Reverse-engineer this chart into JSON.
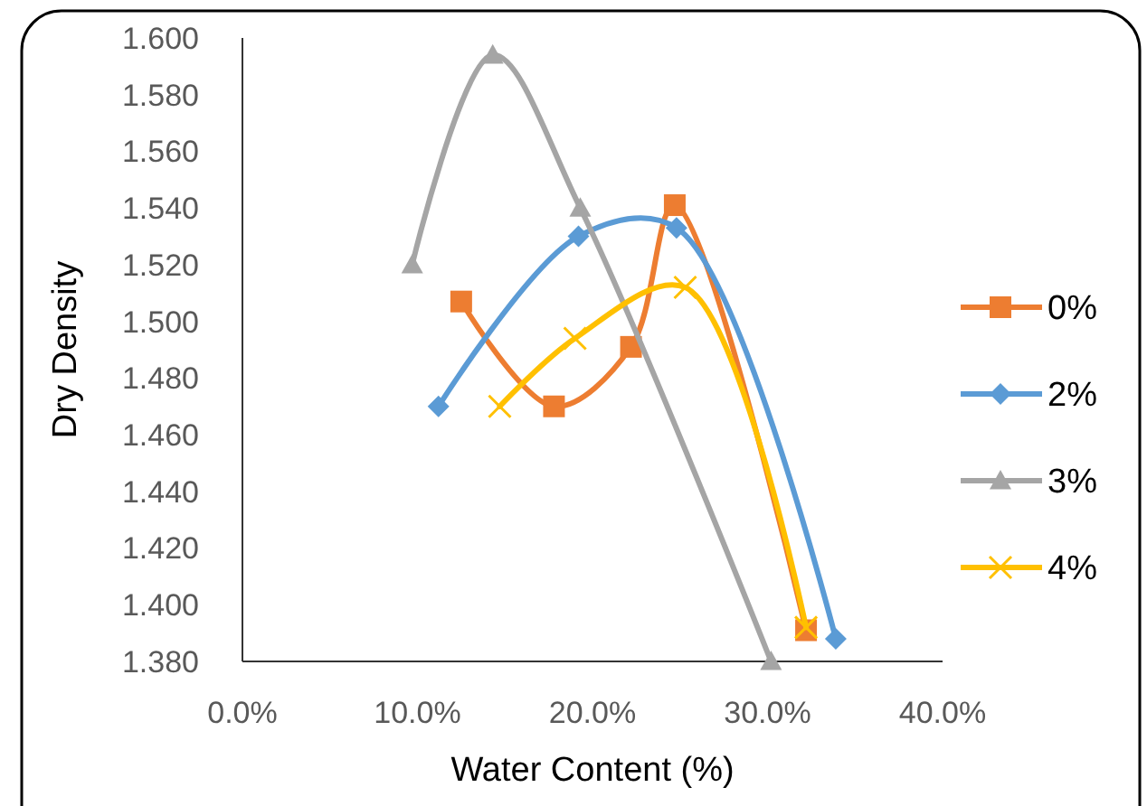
{
  "chart_data": {
    "type": "line",
    "xlabel": "Water Content (%)",
    "ylabel": "Dry Density",
    "xlim": [
      0,
      40
    ],
    "ylim": [
      1.38,
      1.6
    ],
    "xticks": [
      {
        "value": 0,
        "label": "0.0%"
      },
      {
        "value": 10,
        "label": "10.0%"
      },
      {
        "value": 20,
        "label": "20.0%"
      },
      {
        "value": 30,
        "label": "30.0%"
      },
      {
        "value": 40,
        "label": "40.0%"
      }
    ],
    "yticks": [
      {
        "value": 1.38,
        "label": "1.380"
      },
      {
        "value": 1.4,
        "label": "1.400"
      },
      {
        "value": 1.42,
        "label": "1.420"
      },
      {
        "value": 1.44,
        "label": "1.440"
      },
      {
        "value": 1.46,
        "label": "1.460"
      },
      {
        "value": 1.48,
        "label": "1.480"
      },
      {
        "value": 1.5,
        "label": "1.500"
      },
      {
        "value": 1.52,
        "label": "1.520"
      },
      {
        "value": 1.54,
        "label": "1.540"
      },
      {
        "value": 1.56,
        "label": "1.560"
      },
      {
        "value": 1.58,
        "label": "1.580"
      },
      {
        "value": 1.6,
        "label": "1.600"
      }
    ],
    "grid": false,
    "legend": "right",
    "series": [
      {
        "name": "0%",
        "color": "#ed7d31",
        "marker": "square",
        "x": [
          12.5,
          17.8,
          22.2,
          24.7,
          32.2
        ],
        "values": [
          1.507,
          1.47,
          1.491,
          1.541,
          1.391
        ]
      },
      {
        "name": "2%",
        "color": "#5b9bd5",
        "marker": "diamond",
        "x": [
          11.2,
          19.2,
          24.8,
          33.9
        ],
        "values": [
          1.47,
          1.53,
          1.533,
          1.388
        ]
      },
      {
        "name": "3%",
        "color": "#a5a5a5",
        "marker": "triangle",
        "x": [
          9.7,
          14.3,
          19.3,
          30.2
        ],
        "values": [
          1.52,
          1.594,
          1.54,
          1.38
        ]
      },
      {
        "name": "4%",
        "color": "#ffc000",
        "marker": "cross",
        "x": [
          14.7,
          19.0,
          25.3,
          32.2
        ],
        "values": [
          1.47,
          1.494,
          1.512,
          1.392
        ]
      }
    ]
  }
}
